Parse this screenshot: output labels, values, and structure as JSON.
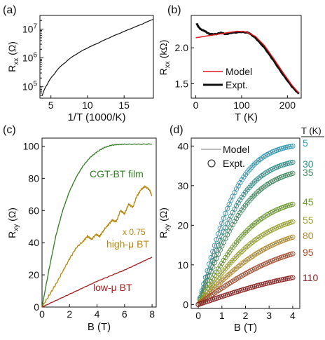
{
  "colors": {
    "black": "#111111",
    "model_red": "#e0191e",
    "cgt_green": "#2e7d1f",
    "high_mu": "#b8860b",
    "low_mu": "#a31a1a"
  },
  "chart_data": [
    {
      "panel": "(a)",
      "type": "line",
      "xlabel": "1/T (1000/K)",
      "ylabel": "Rxx (Ω)",
      "yscale": "log",
      "xlim": [
        3.5,
        19
      ],
      "ylim": [
        40000,
        30000000
      ],
      "xticks": [
        "5",
        "10",
        "15"
      ],
      "yticks": [
        "10^5",
        "10^6",
        "10^7"
      ],
      "series": [
        {
          "x": [
            3.8,
            4.5,
            5.5,
            7,
            8.5,
            10,
            11.5,
            13,
            14.5,
            16,
            17.5,
            19
          ],
          "y": [
            48000,
            120000,
            280000,
            700000,
            1350000,
            2200000,
            3300000,
            5000000,
            7300000,
            10500000,
            15000000,
            22000000
          ]
        }
      ]
    },
    {
      "panel": "(b)",
      "type": "line",
      "xlabel": "T (K)",
      "ylabel": "Rxx (kΩ)",
      "xlim": [
        -10,
        230
      ],
      "ylim": [
        1.3,
        2.45
      ],
      "xticks": [
        "0",
        "100",
        "200"
      ],
      "yticks": [
        "1.5",
        "2.0"
      ],
      "legend": "center-right",
      "series": [
        {
          "name": "Model",
          "x": [
            0,
            30,
            60,
            90,
            110,
            130,
            150,
            170,
            190,
            210,
            225
          ],
          "y": [
            2.14,
            2.17,
            2.2,
            2.23,
            2.22,
            2.16,
            2.03,
            1.85,
            1.66,
            1.48,
            1.37
          ]
        },
        {
          "name": "Expt.",
          "x": [
            2,
            5,
            10,
            20,
            30,
            45,
            55,
            65,
            80,
            100,
            115,
            130,
            150,
            170,
            190,
            210,
            225
          ],
          "y": [
            2.34,
            2.3,
            2.26,
            2.23,
            2.19,
            2.19,
            2.21,
            2.19,
            2.21,
            2.22,
            2.21,
            2.14,
            2.0,
            1.82,
            1.63,
            1.46,
            1.36
          ]
        }
      ]
    },
    {
      "panel": "(c)",
      "type": "line",
      "xlabel": "B (T)",
      "ylabel": "Rxy (Ω)",
      "xlim": [
        0,
        8.3
      ],
      "ylim": [
        0,
        105
      ],
      "xticks": [
        "0",
        "2",
        "4",
        "6",
        "8"
      ],
      "yticks": [
        "0",
        "20",
        "40",
        "60",
        "80",
        "100"
      ],
      "annotation": "x 0.75",
      "series": [
        {
          "name": "CGT-BT film",
          "x": [
            0,
            0.5,
            1,
            1.5,
            2,
            2.5,
            3,
            3.5,
            4,
            4.5,
            5,
            5.5,
            6,
            7,
            8
          ],
          "y": [
            0,
            23,
            44,
            60,
            72,
            81,
            88,
            93,
            96.5,
            99,
            100.5,
            101,
            101.2,
            101.2,
            101.3
          ]
        },
        {
          "name": "high-μ BT",
          "x": [
            0,
            0.5,
            1,
            1.5,
            2,
            2.5,
            3,
            3.3,
            3.6,
            3.9,
            4.2,
            4.5,
            4.8,
            5.1,
            5.4,
            5.7,
            6.0,
            6.3,
            6.6,
            6.9,
            7.2,
            7.5,
            7.8,
            8.0
          ],
          "y": [
            0,
            7,
            14,
            22,
            30,
            37,
            41,
            44,
            42,
            45,
            44,
            48,
            51,
            54,
            53,
            60,
            58,
            64,
            62,
            69,
            73,
            75,
            73,
            69
          ]
        },
        {
          "name": "low-μ BT",
          "x": [
            0,
            1,
            2,
            3,
            4,
            5,
            6,
            7,
            8
          ],
          "y": [
            0,
            4,
            8,
            12,
            16,
            19.5,
            23,
            27,
            31
          ]
        }
      ]
    },
    {
      "panel": "(d)",
      "type": "scatter",
      "xlabel": "B (T)",
      "ylabel": "Rxy (Ω)",
      "xlim": [
        -0.3,
        4.3
      ],
      "ylim": [
        -1,
        42
      ],
      "xticks": [
        "0",
        "1",
        "2",
        "3",
        "4"
      ],
      "yticks": [
        "0",
        "10",
        "20",
        "30",
        "40"
      ],
      "legend": "top-left",
      "legend_entries": [
        "Model",
        "Expt."
      ],
      "temperature_header": "T (K)",
      "series": [
        {
          "name": "5",
          "color": "#2a98b4",
          "final": 40.0
        },
        {
          "name": "30",
          "color": "#2e8f8a",
          "final": 35.9
        },
        {
          "name": "35",
          "color": "#3d8a5f",
          "final": 33.1
        },
        {
          "name": "45",
          "color": "#6a9a2a",
          "final": 25.3
        },
        {
          "name": "55",
          "color": "#9aa52a",
          "final": 20.9
        },
        {
          "name": "80",
          "color": "#b38a2a",
          "final": 17.0
        },
        {
          "name": "95",
          "color": "#a54a2a",
          "final": 12.8
        },
        {
          "name": "110",
          "color": "#8b2020",
          "final": 6.8
        }
      ]
    }
  ]
}
